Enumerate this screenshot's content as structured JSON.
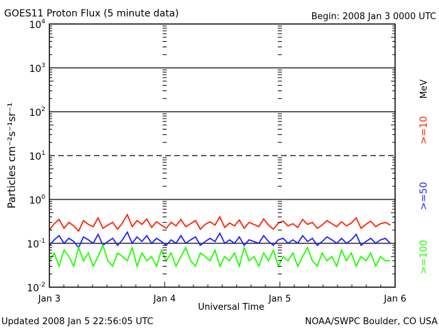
{
  "chart_data": {
    "type": "line",
    "title": "GOES11 Proton Flux (5 minute data)",
    "begin_label": "Begin: 2008 Jan 3 0000 UTC",
    "ylabel": "Particles cm⁻²s⁻¹sr⁻¹",
    "xlabel": "Universal Time",
    "yscale": "log",
    "ylim": [
      0.01,
      10000
    ],
    "y_ticks": [
      {
        "base": "10",
        "exp": "4",
        "value": 10000
      },
      {
        "base": "10",
        "exp": "3",
        "value": 1000
      },
      {
        "base": "10",
        "exp": "2",
        "value": 100
      },
      {
        "base": "10",
        "exp": "1",
        "value": 10
      },
      {
        "base": "10",
        "exp": "0",
        "value": 1
      },
      {
        "base": "10",
        "exp": "-1",
        "value": 0.1
      },
      {
        "base": "10",
        "exp": "-2",
        "value": 0.01
      }
    ],
    "x_ticks": [
      "Jan 3",
      "Jan 4",
      "Jan 5",
      "Jan 6"
    ],
    "xlim_hours": [
      0,
      72
    ],
    "x_unit": "hours since 2008 Jan 3 0000 UTC",
    "solid_gridlines": [
      1000,
      100,
      1,
      0.1
    ],
    "dashed_gridlines": [
      10
    ],
    "unit_label": "MeV",
    "series": [
      {
        "name": ">=10",
        "color": "#ff2000",
        "values": [
          0.2,
          0.28,
          0.35,
          0.22,
          0.3,
          0.25,
          0.19,
          0.33,
          0.27,
          0.24,
          0.38,
          0.22,
          0.26,
          0.3,
          0.21,
          0.29,
          0.45,
          0.24,
          0.33,
          0.27,
          0.36,
          0.23,
          0.31,
          0.26,
          0.22,
          0.3,
          0.25,
          0.35,
          0.24,
          0.28,
          0.33,
          0.21,
          0.27,
          0.31,
          0.26,
          0.4,
          0.23,
          0.29,
          0.25,
          0.34,
          0.22,
          0.3,
          0.27,
          0.24,
          0.36,
          0.26,
          0.21,
          0.29,
          0.32,
          0.25,
          0.28,
          0.23,
          0.35,
          0.27,
          0.3,
          0.22,
          0.26,
          0.33,
          0.28,
          0.24,
          0.31,
          0.25,
          0.29,
          0.38,
          0.22,
          0.27,
          0.32,
          0.24,
          0.28,
          0.3,
          0.26
        ]
      },
      {
        "name": ">=50",
        "color": "#2020ff",
        "values": [
          0.09,
          0.12,
          0.15,
          0.1,
          0.13,
          0.11,
          0.08,
          0.14,
          0.12,
          0.1,
          0.16,
          0.09,
          0.11,
          0.13,
          0.09,
          0.12,
          0.18,
          0.1,
          0.14,
          0.11,
          0.15,
          0.1,
          0.13,
          0.11,
          0.09,
          0.12,
          0.1,
          0.15,
          0.1,
          0.12,
          0.14,
          0.09,
          0.11,
          0.13,
          0.11,
          0.17,
          0.1,
          0.12,
          0.1,
          0.14,
          0.09,
          0.12,
          0.11,
          0.1,
          0.15,
          0.11,
          0.09,
          0.12,
          0.13,
          0.1,
          0.12,
          0.1,
          0.15,
          0.11,
          0.13,
          0.09,
          0.11,
          0.14,
          0.12,
          0.1,
          0.13,
          0.1,
          0.12,
          0.16,
          0.09,
          0.11,
          0.13,
          0.1,
          0.12,
          0.13,
          0.1
        ]
      },
      {
        "name": ">=100",
        "color": "#20ff00",
        "values": [
          0.04,
          0.06,
          0.03,
          0.07,
          0.05,
          0.03,
          0.08,
          0.04,
          0.06,
          0.03,
          0.05,
          0.09,
          0.04,
          0.03,
          0.06,
          0.05,
          0.04,
          0.08,
          0.03,
          0.06,
          0.04,
          0.05,
          0.03,
          0.07,
          0.04,
          0.06,
          0.03,
          0.05,
          0.08,
          0.04,
          0.03,
          0.06,
          0.05,
          0.04,
          0.07,
          0.03,
          0.05,
          0.04,
          0.06,
          0.03,
          0.08,
          0.04,
          0.05,
          0.03,
          0.06,
          0.04,
          0.07,
          0.03,
          0.05,
          0.04,
          0.06,
          0.03,
          0.05,
          0.08,
          0.04,
          0.03,
          0.06,
          0.04,
          0.05,
          0.03,
          0.07,
          0.04,
          0.06,
          0.03,
          0.05,
          0.04,
          0.06,
          0.03,
          0.05,
          0.04,
          0.04
        ]
      }
    ]
  },
  "footer": {
    "updated": "Updated 2008 Jan  5 22:56:05 UTC",
    "source": "NOAA/SWPC Boulder, CO USA"
  }
}
